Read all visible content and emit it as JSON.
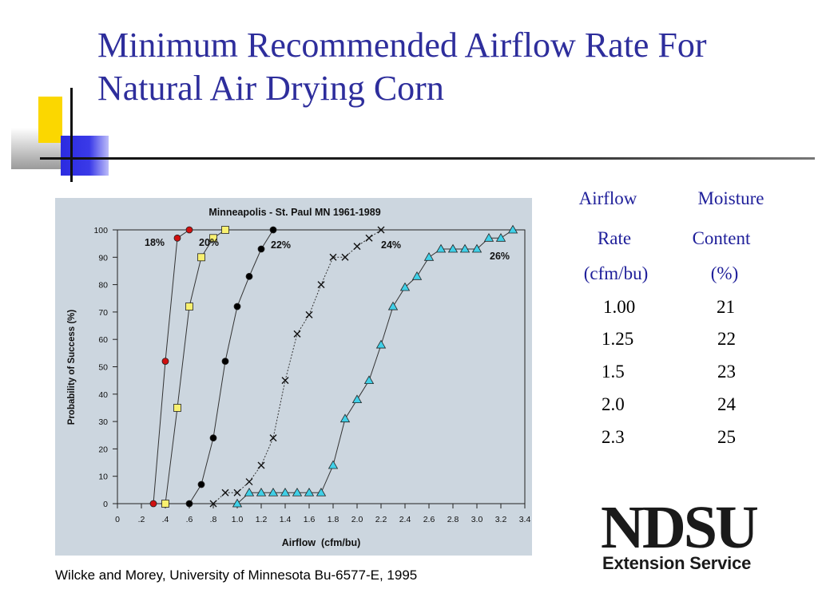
{
  "slide": {
    "title_line1": "Minimum Recommended Airflow Rate For",
    "title_line2": "Natural Air Drying Corn",
    "citation": "Wilcke and Morey, University of Minnesota Bu-6577-E, 1995"
  },
  "table": {
    "header_airflow_1": "Airflow",
    "header_airflow_2": "Rate",
    "header_airflow_3": "(cfm/bu)",
    "header_moisture_1": "Moisture",
    "header_moisture_2": "Content",
    "header_moisture_3": "(%)",
    "rows": [
      {
        "airflow": "1.00",
        "moisture": "21"
      },
      {
        "airflow": "1.25",
        "moisture": "22"
      },
      {
        "airflow": "1.5",
        "moisture": "23"
      },
      {
        "airflow": "2.0",
        "moisture": "24"
      },
      {
        "airflow": "2.3",
        "moisture": "25"
      }
    ]
  },
  "logo": {
    "main": "NDSU",
    "sub": "Extension Service"
  },
  "colors": {
    "title": "#2e2e9c",
    "chart_bg": "#ccd6df",
    "series_18": "#d01010",
    "series_20": "#f8f070",
    "series_22": "#000000",
    "series_24": "#000000",
    "series_26": "#40d0e8"
  },
  "chart_data": {
    "type": "line",
    "title": "Minneapolis - St. Paul MN  1961-1989",
    "xlabel": "Airflow  (cfm/bu)",
    "ylabel": "Probability of Success (%)",
    "xlim": [
      0,
      3.4
    ],
    "ylim": [
      0,
      100
    ],
    "x_ticks": [
      0,
      0.2,
      0.4,
      0.6,
      0.8,
      1.0,
      1.2,
      1.4,
      1.6,
      1.8,
      2.0,
      2.2,
      2.4,
      2.6,
      2.8,
      3.0,
      3.2,
      3.4
    ],
    "x_tick_labels": [
      "0",
      ".2",
      ".4",
      ".6",
      ".8",
      "1.0",
      "1.2",
      "1.4",
      "1.6",
      "1.8",
      "2.0",
      "2.2",
      "2.4",
      "2.6",
      "2.8",
      "3.0",
      "3.2",
      "3.4"
    ],
    "y_ticks": [
      0,
      10,
      20,
      30,
      40,
      50,
      60,
      70,
      80,
      90,
      100
    ],
    "y_tick_labels": [
      "0",
      "10",
      "20",
      "30",
      "40",
      "50",
      "60",
      "70",
      "80",
      "90",
      "100"
    ],
    "grid": false,
    "series": [
      {
        "name": "18%",
        "marker": "circle-red",
        "dash": false,
        "x": [
          0.3,
          0.4,
          0.5,
          0.6
        ],
        "y": [
          0,
          52,
          97,
          100
        ]
      },
      {
        "name": "20%",
        "marker": "square-yellow",
        "dash": false,
        "x": [
          0.4,
          0.5,
          0.6,
          0.7,
          0.8,
          0.9
        ],
        "y": [
          0,
          35,
          72,
          90,
          97,
          100
        ]
      },
      {
        "name": "22%",
        "marker": "circle-black",
        "dash": false,
        "x": [
          0.6,
          0.7,
          0.8,
          0.9,
          1.0,
          1.1,
          1.2,
          1.3
        ],
        "y": [
          0,
          7,
          24,
          52,
          72,
          83,
          93,
          100
        ]
      },
      {
        "name": "24%",
        "marker": "x",
        "dash": true,
        "x": [
          0.8,
          0.9,
          1.0,
          1.1,
          1.2,
          1.3,
          1.4,
          1.5,
          1.6,
          1.7,
          1.8,
          1.9,
          2.0,
          2.1,
          2.2
        ],
        "y": [
          0,
          4,
          4,
          8,
          14,
          24,
          45,
          62,
          69,
          80,
          90,
          90,
          94,
          97,
          100
        ]
      },
      {
        "name": "26%",
        "marker": "triangle-cyan",
        "dash": false,
        "x": [
          1.0,
          1.1,
          1.2,
          1.3,
          1.4,
          1.5,
          1.6,
          1.7,
          1.8,
          1.9,
          2.0,
          2.1,
          2.2,
          2.3,
          2.4,
          2.5,
          2.6,
          2.7,
          2.8,
          2.9,
          3.0,
          3.1,
          3.2,
          3.3
        ],
        "y": [
          0,
          4,
          4,
          4,
          4,
          4,
          4,
          4,
          14,
          31,
          38,
          45,
          58,
          72,
          79,
          83,
          90,
          93,
          93,
          93,
          93,
          97,
          97,
          100
        ]
      }
    ],
    "annotations": [
      "18%",
      "20%",
      "22%",
      "24%",
      "26%"
    ]
  }
}
